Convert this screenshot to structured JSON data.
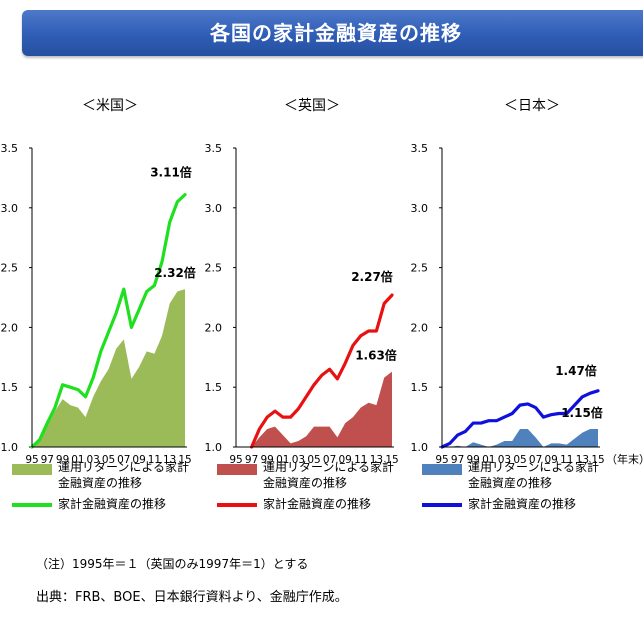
{
  "header": {
    "title": "各国の家計金融資産の推移"
  },
  "chart_data": [
    {
      "type": "area",
      "title": "＜米国＞",
      "x": [
        "95",
        "96",
        "97",
        "98",
        "99",
        "00",
        "01",
        "02",
        "03",
        "04",
        "05",
        "06",
        "07",
        "08",
        "09",
        "10",
        "11",
        "12",
        "13",
        "14",
        "15"
      ],
      "xtick_labels": [
        "95",
        "97",
        "99",
        "01",
        "03",
        "05",
        "07",
        "09",
        "11",
        "13",
        "15"
      ],
      "ylim": [
        1.0,
        3.5
      ],
      "yticks": [
        "1.0",
        "1.5",
        "2.0",
        "2.5",
        "3.0",
        "3.5"
      ],
      "series": [
        {
          "name": "運用リターンによる家計金融資産の推移",
          "kind": "area",
          "color": "#9bbb59",
          "values": [
            1.0,
            1.05,
            1.18,
            1.3,
            1.4,
            1.35,
            1.33,
            1.25,
            1.42,
            1.55,
            1.65,
            1.82,
            1.9,
            1.57,
            1.67,
            1.8,
            1.78,
            1.93,
            2.2,
            2.3,
            2.32
          ]
        },
        {
          "name": "家計金融資産の推移",
          "kind": "line",
          "color": "#1ee01e",
          "values": [
            1.0,
            1.06,
            1.2,
            1.33,
            1.52,
            1.5,
            1.48,
            1.42,
            1.58,
            1.8,
            1.96,
            2.12,
            2.32,
            2.0,
            2.15,
            2.3,
            2.35,
            2.55,
            2.88,
            3.05,
            3.11
          ]
        }
      ],
      "annotations": [
        "3.11倍",
        "2.32倍"
      ]
    },
    {
      "type": "area",
      "title": "＜英国＞",
      "x": [
        "95",
        "96",
        "97",
        "98",
        "99",
        "00",
        "01",
        "02",
        "03",
        "04",
        "05",
        "06",
        "07",
        "08",
        "09",
        "10",
        "11",
        "12",
        "13",
        "14",
        "15"
      ],
      "xtick_labels": [
        "95",
        "97",
        "99",
        "01",
        "03",
        "05",
        "07",
        "09",
        "11",
        "13",
        "15"
      ],
      "ylim": [
        1.0,
        3.5
      ],
      "yticks": [
        "1.0",
        "1.5",
        "2.0",
        "2.5",
        "3.0",
        "3.5"
      ],
      "series": [
        {
          "name": "運用リターンによる家計金融資産の推移",
          "kind": "area",
          "color": "#c0504d",
          "values": [
            null,
            null,
            1.0,
            1.08,
            1.15,
            1.17,
            1.1,
            1.03,
            1.05,
            1.09,
            1.17,
            1.17,
            1.17,
            1.08,
            1.2,
            1.25,
            1.33,
            1.37,
            1.35,
            1.58,
            1.63
          ]
        },
        {
          "name": "家計金融資産の推移",
          "kind": "line",
          "color": "#e81010",
          "values": [
            null,
            null,
            1.0,
            1.15,
            1.25,
            1.3,
            1.25,
            1.25,
            1.32,
            1.42,
            1.52,
            1.6,
            1.65,
            1.57,
            1.7,
            1.85,
            1.93,
            1.97,
            1.97,
            2.2,
            2.27
          ]
        }
      ],
      "annotations": [
        "2.27倍",
        "1.63倍"
      ]
    },
    {
      "type": "area",
      "title": "＜日本＞",
      "x": [
        "95",
        "96",
        "97",
        "98",
        "99",
        "00",
        "01",
        "02",
        "03",
        "04",
        "05",
        "06",
        "07",
        "08",
        "09",
        "10",
        "11",
        "12",
        "13",
        "14",
        "15"
      ],
      "xtick_labels": [
        "95",
        "97",
        "99",
        "01",
        "03",
        "05",
        "07",
        "09",
        "11",
        "13",
        "15"
      ],
      "x_unit": "（年末）",
      "ylim": [
        1.0,
        3.5
      ],
      "yticks": [
        "1.0",
        "1.5",
        "2.0",
        "2.5",
        "3.0",
        "3.5"
      ],
      "series": [
        {
          "name": "運用リターンによる家計金融資産の推移",
          "kind": "area",
          "color": "#4f81bd",
          "values": [
            1.0,
            1.0,
            1.01,
            1.0,
            1.04,
            1.02,
            1.0,
            1.02,
            1.05,
            1.05,
            1.15,
            1.15,
            1.08,
            1.0,
            1.03,
            1.03,
            1.02,
            1.07,
            1.12,
            1.15,
            1.15
          ]
        },
        {
          "name": "家計金融資産の推移",
          "kind": "line",
          "color": "#1010dd",
          "values": [
            1.0,
            1.03,
            1.1,
            1.13,
            1.2,
            1.2,
            1.22,
            1.22,
            1.25,
            1.28,
            1.35,
            1.36,
            1.33,
            1.25,
            1.27,
            1.28,
            1.28,
            1.35,
            1.42,
            1.45,
            1.47
          ]
        }
      ],
      "annotations": [
        "1.47倍",
        "1.15倍"
      ]
    }
  ],
  "legends": [
    {
      "area_line1": "運用リターンによる家計",
      "area_line2": "金融資産の推移",
      "line_label": "家計金融資産の推移"
    },
    {
      "area_line1": "運用リターンによる家計",
      "area_line2": "金融資産の推移",
      "line_label": "家計金融資産の推移"
    },
    {
      "area_line1": "運用リターンによる家計",
      "area_line2": "金融資産の推移",
      "line_label": "家計金融資産の推移"
    }
  ],
  "footer": {
    "note": "（注）1995年＝１（英国のみ1997年＝1）とする",
    "source": "出典：FRB、BOE、日本銀行資料より、金融庁作成。"
  }
}
